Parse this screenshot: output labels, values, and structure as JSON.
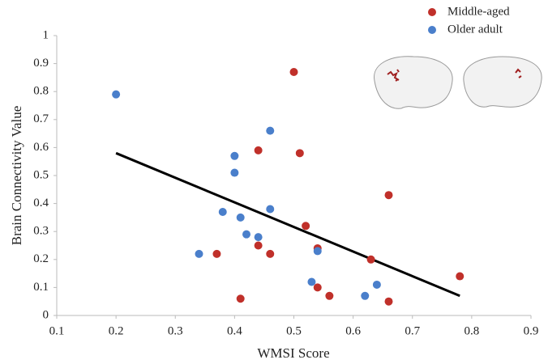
{
  "chart_data": {
    "type": "scatter",
    "x_label": "WMSI Score",
    "y_label": "Brain Connectivity Value",
    "xlim": [
      0.1,
      0.9
    ],
    "xticks": [
      0.1,
      0.2,
      0.3,
      0.4,
      0.5,
      0.6,
      0.7,
      0.8,
      0.9
    ],
    "ylim": [
      0,
      1
    ],
    "yticks": [
      0,
      0.1,
      0.2,
      0.3,
      0.4,
      0.5,
      0.6,
      0.7,
      0.8,
      0.9,
      1
    ],
    "grid": false,
    "legend": "top-right",
    "series": [
      {
        "name": "Middle-aged",
        "color": "#c0302a",
        "x": [
          0.5,
          0.44,
          0.51,
          0.66,
          0.52,
          0.54,
          0.37,
          0.44,
          0.46,
          0.41,
          0.54,
          0.56,
          0.63,
          0.66,
          0.78
        ],
        "values": [
          0.87,
          0.59,
          0.58,
          0.43,
          0.32,
          0.24,
          0.22,
          0.25,
          0.22,
          0.06,
          0.1,
          0.07,
          0.2,
          0.05,
          0.14
        ]
      },
      {
        "name": "Older adult",
        "color": "#4a7fcb",
        "x": [
          0.2,
          0.46,
          0.4,
          0.4,
          0.38,
          0.41,
          0.46,
          0.42,
          0.44,
          0.54,
          0.34,
          0.53,
          0.64,
          0.62
        ],
        "values": [
          0.79,
          0.66,
          0.57,
          0.51,
          0.37,
          0.35,
          0.38,
          0.29,
          0.28,
          0.23,
          0.22,
          0.12,
          0.11,
          0.07
        ]
      }
    ],
    "trendline": {
      "color": "#000000",
      "x": [
        0.2,
        0.78
      ],
      "values": [
        0.58,
        0.07
      ]
    }
  }
}
